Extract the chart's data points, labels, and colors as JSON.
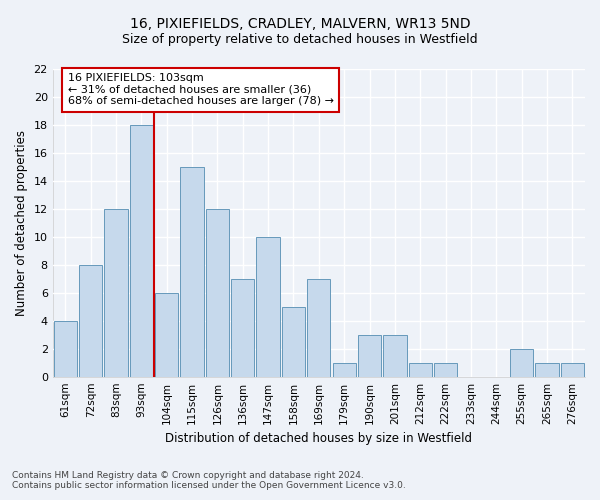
{
  "title_line1": "16, PIXIEFIELDS, CRADLEY, MALVERN, WR13 5ND",
  "title_line2": "Size of property relative to detached houses in Westfield",
  "xlabel": "Distribution of detached houses by size in Westfield",
  "ylabel": "Number of detached properties",
  "bin_labels": [
    "61sqm",
    "72sqm",
    "83sqm",
    "93sqm",
    "104sqm",
    "115sqm",
    "126sqm",
    "136sqm",
    "147sqm",
    "158sqm",
    "169sqm",
    "179sqm",
    "190sqm",
    "201sqm",
    "212sqm",
    "222sqm",
    "233sqm",
    "244sqm",
    "255sqm",
    "265sqm",
    "276sqm"
  ],
  "values": [
    4,
    8,
    12,
    18,
    6,
    15,
    12,
    7,
    10,
    5,
    7,
    1,
    3,
    3,
    1,
    1,
    0,
    0,
    2,
    1,
    1
  ],
  "bar_color": "#c6d9ec",
  "bar_edge_color": "#6699bb",
  "vline_x_index": 3.5,
  "vline_color": "#cc0000",
  "annotation_text": "16 PIXIEFIELDS: 103sqm\n← 31% of detached houses are smaller (36)\n68% of semi-detached houses are larger (78) →",
  "annotation_box_color": "#ffffff",
  "annotation_box_edge_color": "#cc0000",
  "ylim": [
    0,
    22
  ],
  "yticks": [
    0,
    2,
    4,
    6,
    8,
    10,
    12,
    14,
    16,
    18,
    20,
    22
  ],
  "footer_line1": "Contains HM Land Registry data © Crown copyright and database right 2024.",
  "footer_line2": "Contains public sector information licensed under the Open Government Licence v3.0.",
  "background_color": "#eef2f8",
  "grid_color": "#ffffff",
  "title_fontsize": 10,
  "subtitle_fontsize": 9,
  "bar_width": 0.92
}
